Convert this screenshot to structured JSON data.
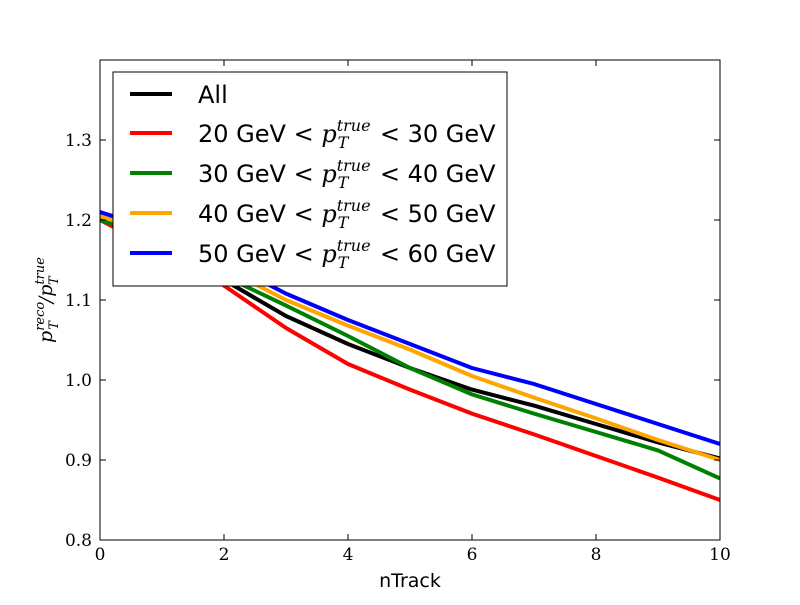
{
  "chart_data": {
    "type": "line",
    "xlabel": "nTrack",
    "ylabel": {
      "base": "p",
      "num_sup": "reco",
      "sub": "T",
      "slash": "/",
      "den_sup": "true"
    },
    "xlim": [
      0,
      10
    ],
    "ylim": [
      0.8,
      1.4
    ],
    "x_ticks": [
      0,
      2,
      4,
      6,
      8,
      10
    ],
    "y_ticks": [
      0.8,
      0.9,
      1.0,
      1.1,
      1.2,
      1.3
    ],
    "x_tick_labels": [
      "0",
      "2",
      "4",
      "6",
      "8",
      "10"
    ],
    "y_tick_labels": [
      "0.8",
      "0.9",
      "1.0",
      "1.1",
      "1.2",
      "1.3"
    ],
    "grid": false,
    "legend_position": "top-left",
    "series": [
      {
        "name": "All",
        "color": "#000000",
        "x": [
          0,
          1,
          2,
          3,
          4,
          5,
          6,
          7,
          8,
          9,
          10
        ],
        "y": [
          1.2,
          1.175,
          1.125,
          1.08,
          1.045,
          1.015,
          0.988,
          0.968,
          0.945,
          0.922,
          0.902
        ]
      },
      {
        "name": "20 GeV < p_T^true < 30 GeV",
        "label_parts": {
          "pre": "20 GeV <",
          "post": "< 30 GeV"
        },
        "color": "#ff0000",
        "x": [
          0,
          1,
          2,
          3,
          4,
          5,
          6,
          7,
          8,
          9,
          10
        ],
        "y": [
          1.2,
          1.16,
          1.118,
          1.065,
          1.02,
          0.988,
          0.958,
          0.932,
          0.905,
          0.878,
          0.85
        ]
      },
      {
        "name": "30 GeV < p_T^true < 40 GeV",
        "label_parts": {
          "pre": "30 GeV <",
          "post": "< 40 GeV"
        },
        "color": "#008000",
        "x": [
          0,
          1,
          2,
          3,
          4,
          5,
          6,
          7,
          8,
          9,
          10
        ],
        "y": [
          1.2,
          1.175,
          1.13,
          1.093,
          1.055,
          1.015,
          0.982,
          0.958,
          0.935,
          0.912,
          0.877
        ]
      },
      {
        "name": "40 GeV < p_T^true < 50 GeV",
        "label_parts": {
          "pre": "40 GeV <",
          "post": "< 50 GeV"
        },
        "color": "#ffa500",
        "x": [
          0,
          1,
          2,
          3,
          4,
          5,
          6,
          7,
          8,
          9,
          10
        ],
        "y": [
          1.205,
          1.18,
          1.14,
          1.1,
          1.068,
          1.038,
          1.005,
          0.978,
          0.952,
          0.925,
          0.9
        ]
      },
      {
        "name": "50 GeV < p_T^true < 60 GeV",
        "label_parts": {
          "pre": "50 GeV <",
          "post": "< 60 GeV"
        },
        "color": "#0000ff",
        "x": [
          0,
          1,
          2,
          3,
          4,
          5,
          6,
          7,
          8,
          9,
          10
        ],
        "y": [
          1.21,
          1.185,
          1.148,
          1.108,
          1.075,
          1.045,
          1.015,
          0.995,
          0.97,
          0.945,
          0.92
        ]
      }
    ]
  }
}
